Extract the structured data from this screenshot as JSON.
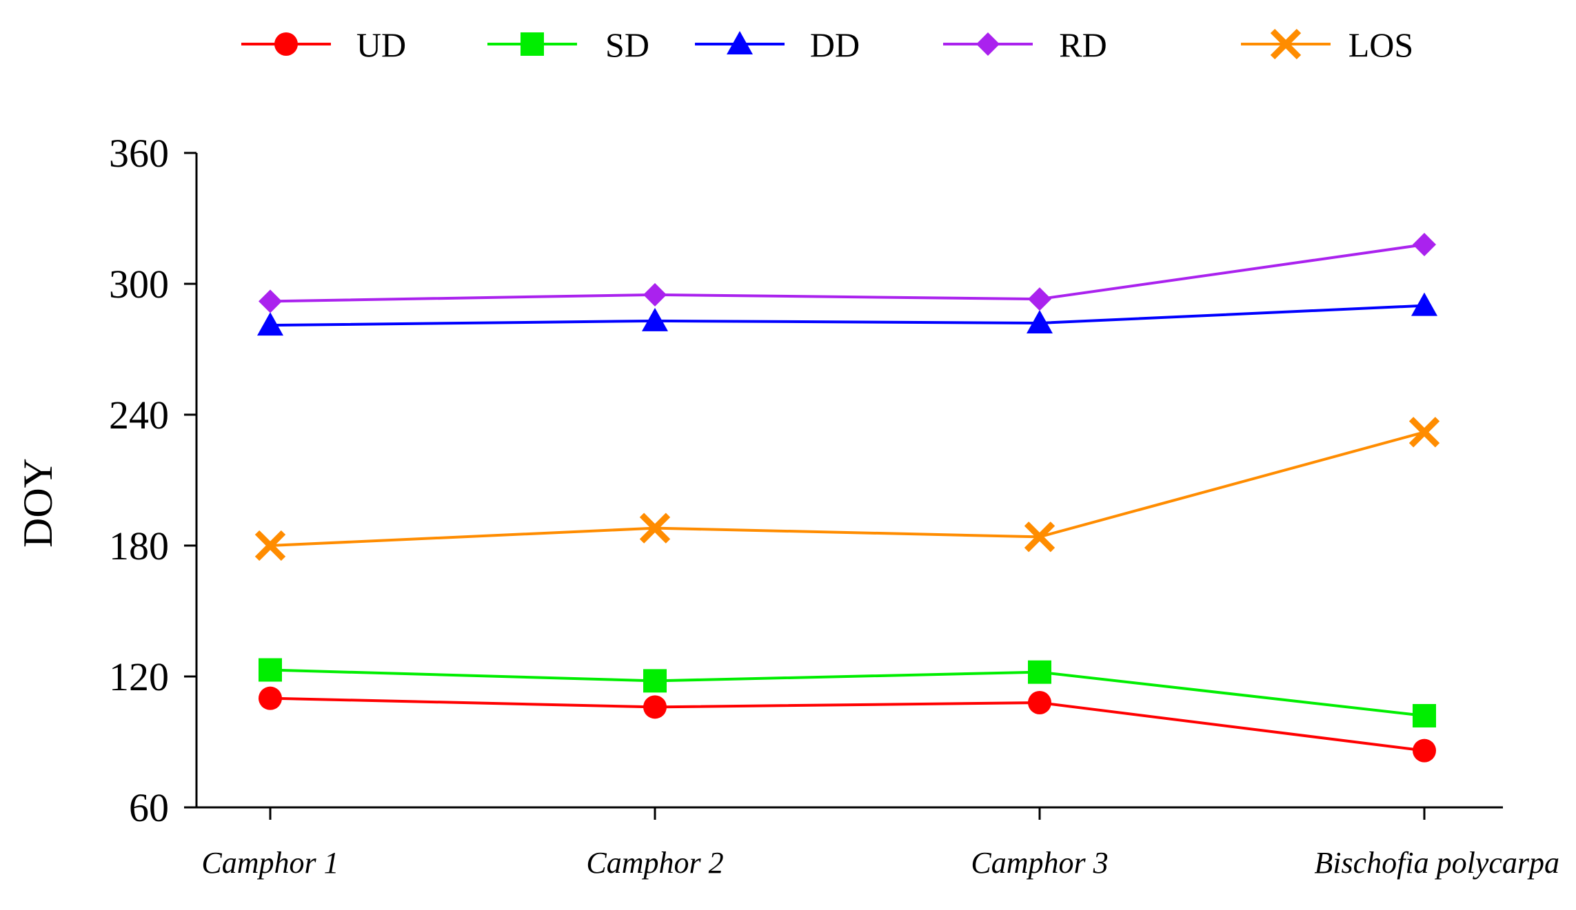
{
  "chart_data": {
    "type": "line",
    "title": "",
    "xlabel": "",
    "ylabel": "DOY",
    "ylim": [
      60,
      360
    ],
    "yticks": [
      60,
      120,
      180,
      240,
      300,
      360
    ],
    "grid": false,
    "legend_position": "top",
    "categories": [
      "Camphor 1",
      "Camphor 2",
      "Camphor 3",
      "Bischofia polycarpa"
    ],
    "series": [
      {
        "name": "UD",
        "color": "#ff0000",
        "marker": "circle",
        "values": [
          110,
          106,
          108,
          86
        ]
      },
      {
        "name": "SD",
        "color": "#00ee00",
        "marker": "square",
        "values": [
          123,
          118,
          122,
          102
        ]
      },
      {
        "name": "DD",
        "color": "#0000ff",
        "marker": "triangle",
        "values": [
          281,
          283,
          282,
          290
        ]
      },
      {
        "name": "RD",
        "color": "#aa22ee",
        "marker": "diamond",
        "values": [
          292,
          295,
          293,
          318
        ]
      },
      {
        "name": "LOS",
        "color": "#ff8c00",
        "marker": "x",
        "values": [
          180,
          188,
          184,
          232
        ]
      }
    ]
  }
}
